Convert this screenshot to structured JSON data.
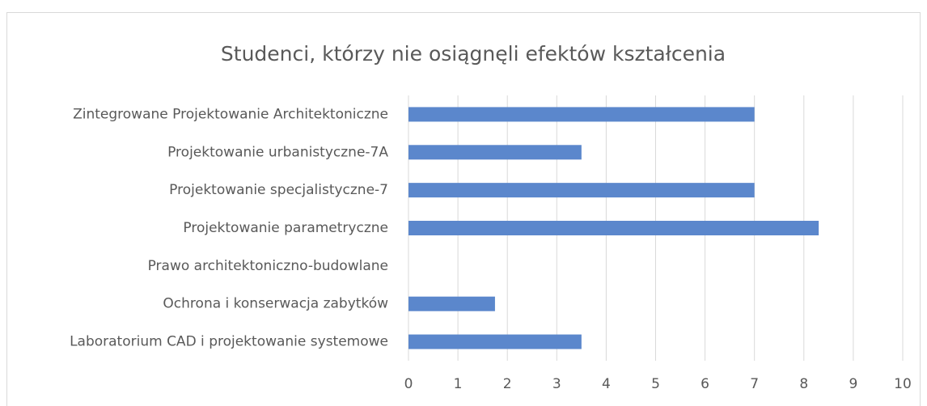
{
  "chart_data": {
    "type": "barh",
    "title": "Studenci, którzy nie osiągnęli efektów kształcenia",
    "categories": [
      "Zintegrowane Projektowanie Architektoniczne",
      "Projektowanie urbanistyczne-7A",
      "Projektowanie specjalistyczne-7",
      "Projektowanie parametryczne",
      "Prawo architektoniczno-budowlane",
      "Ochrona i konserwacja zabytków",
      "Laboratorium CAD i projektowanie systemowe"
    ],
    "values": [
      7,
      3.5,
      7,
      8.3,
      0,
      1.75,
      3.5
    ],
    "color": "#5b87cc",
    "xlim": [
      0,
      10
    ],
    "xticks": [
      0,
      1,
      2,
      3,
      4,
      5,
      6,
      7,
      8,
      9,
      10
    ],
    "grid": true
  }
}
